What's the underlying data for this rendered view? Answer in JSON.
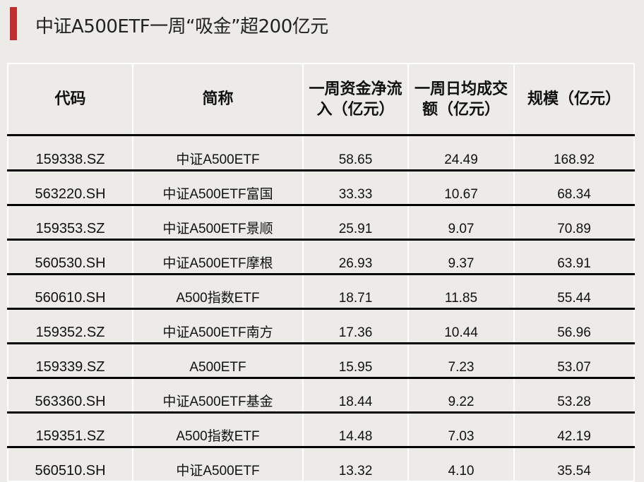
{
  "title": "中证A500ETF一周“吸金”超200亿元",
  "accent_color": "#c0302e",
  "table": {
    "headers": [
      "代码",
      "简称",
      "一周资金净流入（亿元）",
      "一周日均成交额（亿元）",
      "规模（亿元）"
    ],
    "rows": [
      [
        "159338.SZ",
        "中证A500ETF",
        "58.65",
        "24.49",
        "168.92"
      ],
      [
        "563220.SH",
        "中证A500ETF富国",
        "33.33",
        "10.67",
        "68.34"
      ],
      [
        "159353.SZ",
        "中证A500ETF景顺",
        "25.91",
        "9.07",
        "70.89"
      ],
      [
        "560530.SH",
        "中证A500ETF摩根",
        "26.93",
        "9.37",
        "63.91"
      ],
      [
        "560610.SH",
        "A500指数ETF",
        "18.71",
        "11.85",
        "55.44"
      ],
      [
        "159352.SZ",
        "中证A500ETF南方",
        "17.36",
        "10.44",
        "56.96"
      ],
      [
        "159339.SZ",
        "A500ETF",
        "15.95",
        "7.23",
        "53.07"
      ],
      [
        "563360.SH",
        "中证A500ETF基金",
        "18.44",
        "9.22",
        "53.28"
      ],
      [
        "159351.SZ",
        "A500指数ETF",
        "14.48",
        "7.03",
        "42.19"
      ],
      [
        "560510.SH",
        "中证A500ETF",
        "13.32",
        "4.10",
        "35.54"
      ]
    ]
  }
}
